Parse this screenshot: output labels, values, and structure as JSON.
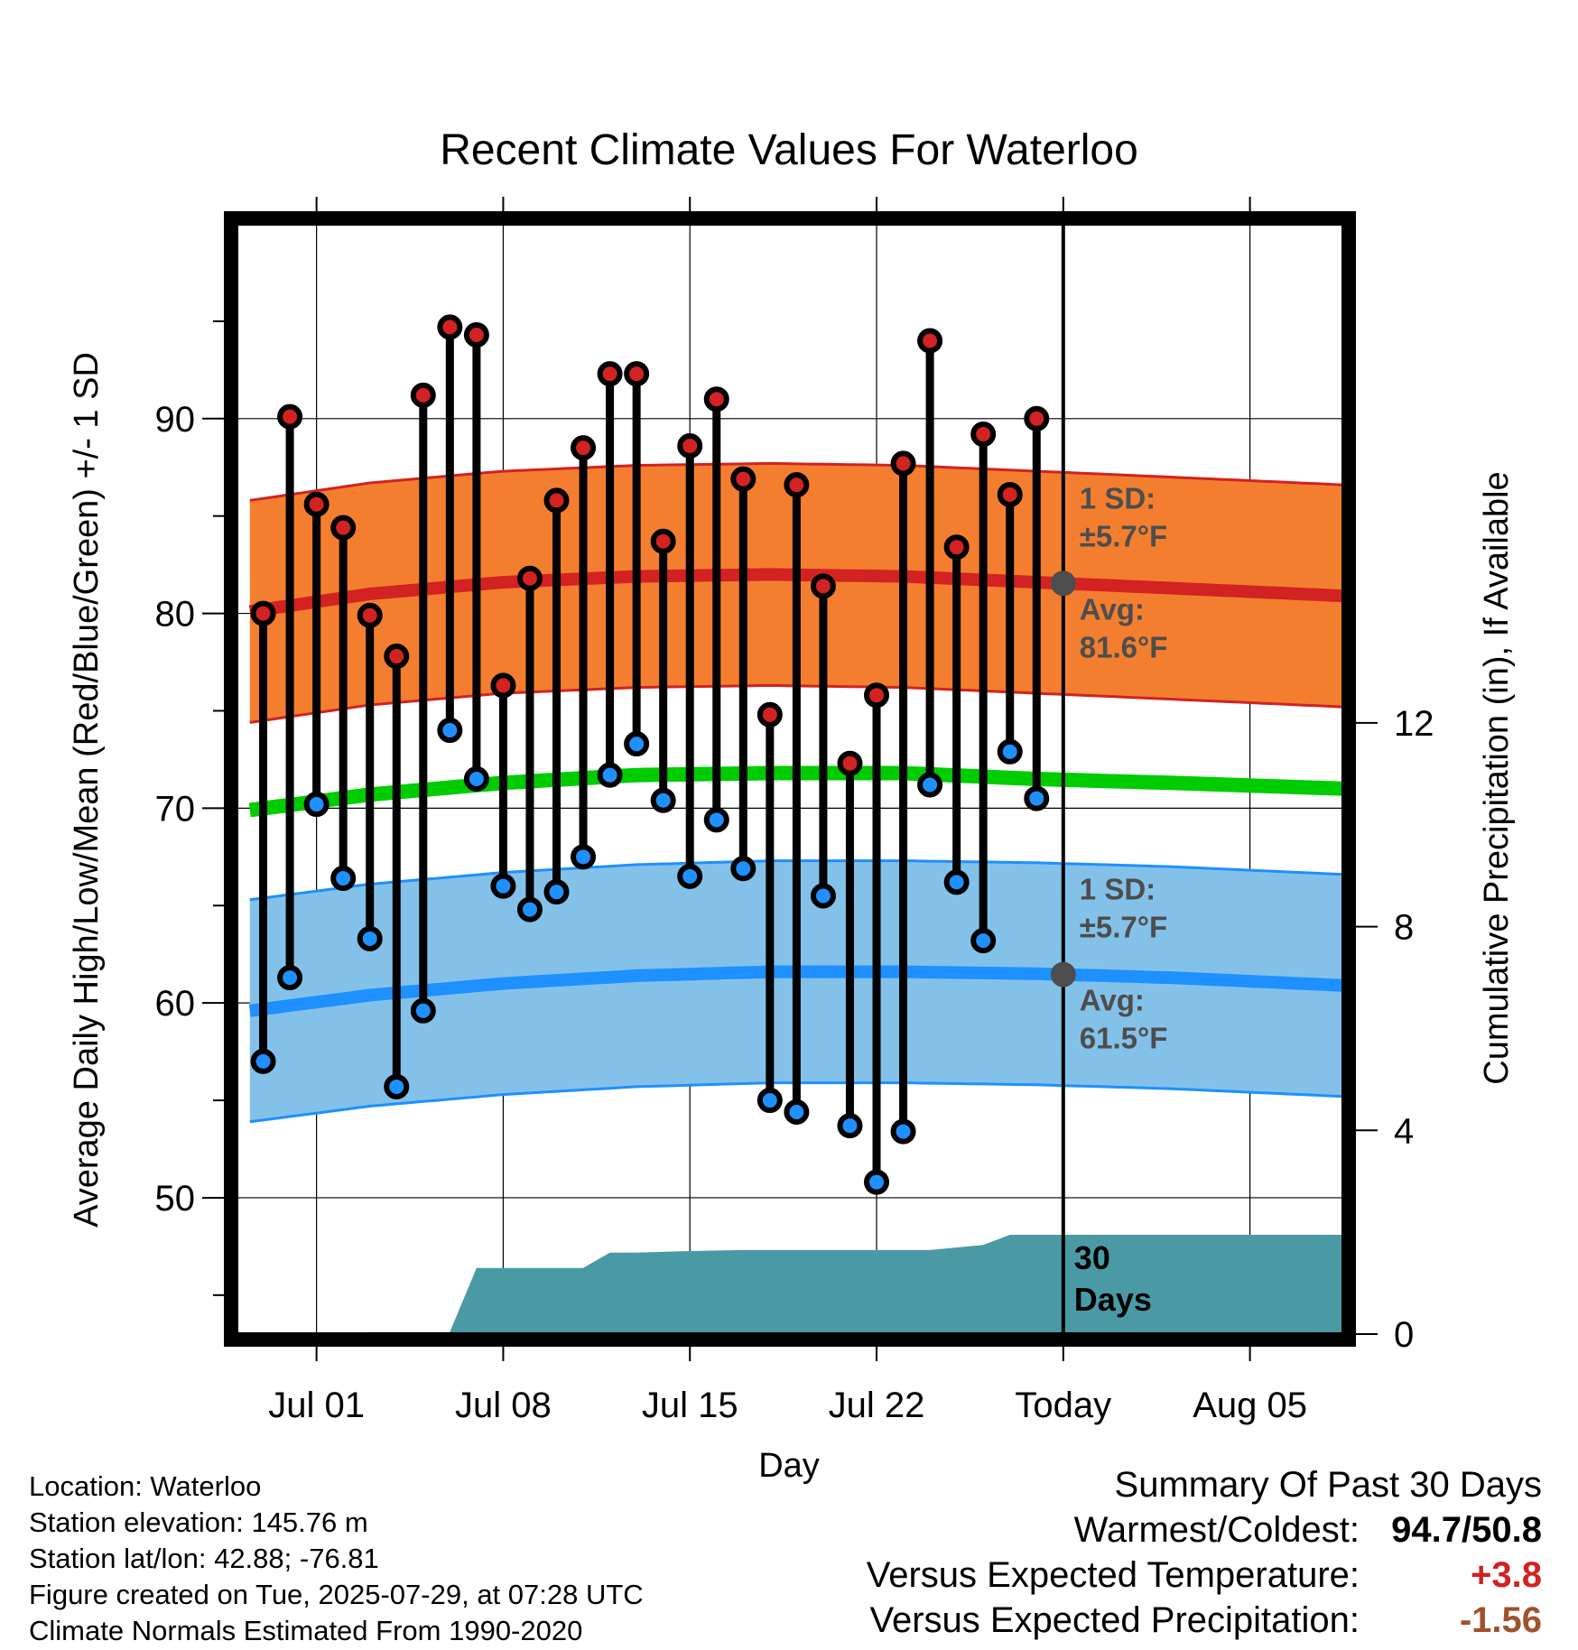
{
  "chart_data": {
    "type": "line",
    "title": "Recent Climate Values For Waterloo",
    "xlabel": "Day",
    "ylabel_left": "Average Daily High/Low/Mean (Red/Blue/Green) +/- 1 SD",
    "ylabel_right": "Cumulative Precipitation (in), If Available",
    "x_ticks": [
      {
        "day": 3,
        "label": "Jul 01"
      },
      {
        "day": 10,
        "label": "Jul 08"
      },
      {
        "day": 17,
        "label": "Jul 15"
      },
      {
        "day": 24,
        "label": "Jul 22"
      },
      {
        "day": 31,
        "label": "Today"
      },
      {
        "day": 38,
        "label": "Aug 05"
      }
    ],
    "xlim": [
      0,
      41.5
    ],
    "ylim_left": [
      43,
      100
    ],
    "y_ticks_left": [
      50,
      60,
      70,
      80,
      90
    ],
    "ylim_right": [
      0,
      21.8
    ],
    "y_ticks_right": [
      0,
      4,
      8,
      12
    ],
    "grid": true,
    "today_day": 31,
    "normals_days": [
      0.5,
      5,
      10,
      15,
      20,
      25,
      30,
      35,
      41.5
    ],
    "normal_high": [
      80.1,
      81.0,
      81.6,
      81.9,
      82.0,
      81.9,
      81.6,
      81.3,
      80.9
    ],
    "normal_low": [
      59.6,
      60.4,
      61.0,
      61.4,
      61.6,
      61.6,
      61.5,
      61.3,
      60.9
    ],
    "normal_mean": [
      69.9,
      70.7,
      71.3,
      71.7,
      71.8,
      71.8,
      71.5,
      71.3,
      71.0
    ],
    "sd_high": 5.7,
    "sd_low": 5.7,
    "daily_days": [
      1,
      2,
      3,
      4,
      5,
      6,
      7,
      8,
      9,
      10,
      11,
      12,
      13,
      14,
      15,
      16,
      17,
      18,
      19,
      20,
      21,
      22,
      23,
      24,
      25,
      26,
      27,
      28,
      29,
      30
    ],
    "daily_high": [
      80.0,
      90.1,
      85.6,
      84.4,
      79.9,
      77.8,
      91.2,
      94.7,
      94.3,
      76.3,
      81.8,
      85.8,
      88.5,
      92.3,
      92.3,
      83.7,
      88.6,
      91.0,
      86.9,
      74.8,
      86.6,
      81.4,
      72.3,
      75.8,
      87.7,
      94.0,
      83.4,
      89.2,
      86.1,
      90.0
    ],
    "daily_low": [
      57.0,
      61.3,
      70.2,
      66.4,
      63.3,
      55.7,
      59.6,
      74.0,
      71.5,
      66.0,
      64.8,
      65.7,
      67.5,
      71.7,
      73.3,
      70.4,
      66.5,
      69.4,
      66.9,
      55.0,
      54.4,
      65.5,
      53.7,
      50.8,
      53.4,
      71.2,
      66.2,
      63.2,
      72.9,
      70.5
    ],
    "precip_days": [
      0.5,
      3,
      5,
      8,
      9,
      13,
      14,
      15,
      17,
      19,
      21,
      23,
      26,
      28,
      29,
      41.5
    ],
    "precip_cum": [
      0,
      0,
      0.04,
      0.04,
      1.3,
      1.3,
      1.6,
      1.6,
      1.63,
      1.65,
      1.65,
      1.65,
      1.65,
      1.75,
      1.95,
      1.95
    ],
    "annotations": {
      "high_sd": "1 SD:",
      "high_sd_value": "±5.7°F",
      "high_avg": "Avg:",
      "high_avg_value": "81.6°F",
      "low_sd": "1 SD:",
      "low_sd_value": "±5.7°F",
      "low_avg": "Avg:",
      "low_avg_value": "61.5°F",
      "period_value": "30",
      "period_unit": "Days"
    },
    "colors": {
      "high_band": "#F47E2F",
      "high_line": "#D22222",
      "low_band": "#84C1E9",
      "low_line": "#1E90FF",
      "mean_line": "#00CC00",
      "precip_fill": "#4A9AA5",
      "high_marker": "#D22222",
      "low_marker": "#1E90FF",
      "annotation_text": "#4D4D4D"
    }
  },
  "footer": {
    "location": "Location: Waterloo",
    "elevation": "Station elevation: 145.76 m",
    "latlon": "Station lat/lon: 42.88; -76.81",
    "created": "Figure created on Tue, 2025-07-29, at 07:28 UTC",
    "normals": "Climate Normals Estimated From 1990-2020"
  },
  "summary": {
    "heading": "Summary Of Past 30 Days",
    "warmest_label": "Warmest/Coldest:",
    "warmest_value": "94.7/50.8",
    "temp_label": "Versus Expected Temperature:",
    "temp_value": "+3.8",
    "temp_color": "#D22222",
    "precip_label": "Versus Expected Precipitation:",
    "precip_value": "-1.56",
    "precip_color": "#A0522D"
  }
}
